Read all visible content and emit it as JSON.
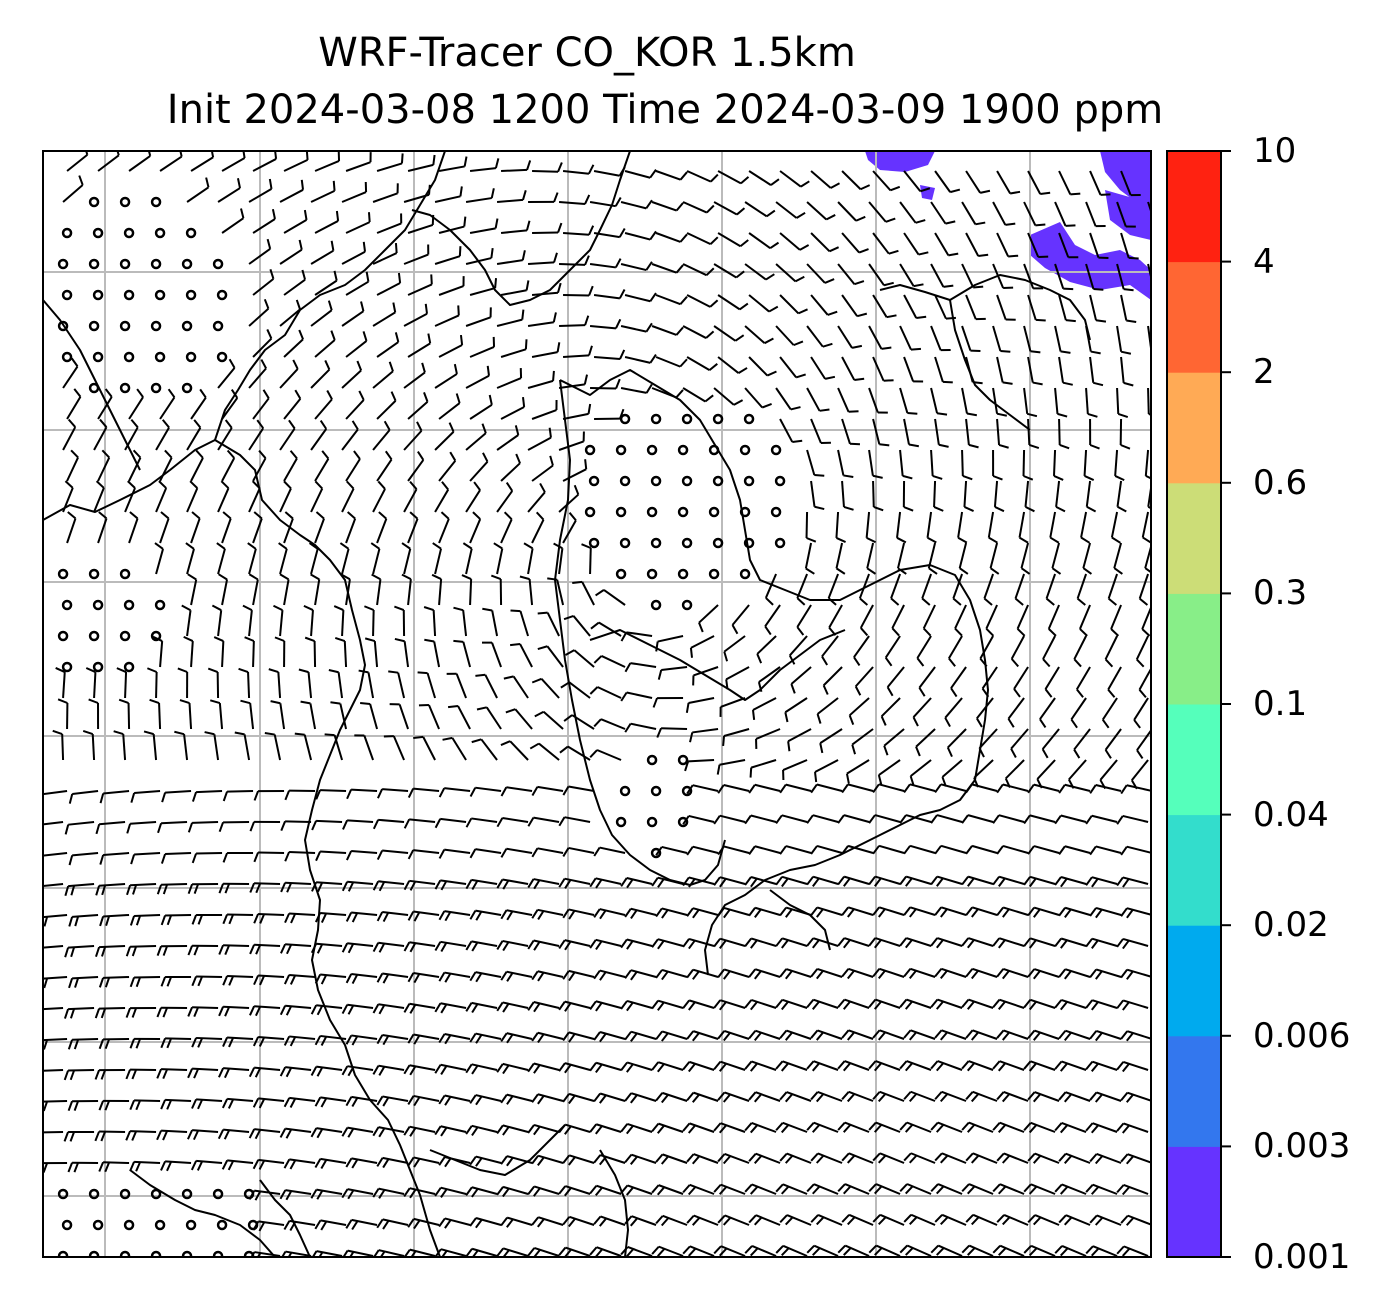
{
  "title": {
    "line1": "WRF-Tracer CO_KOR 1.5km",
    "line2": "Init 2024-03-08 1200 Time 2024-03-09 1900 ppm"
  },
  "colorbar": {
    "levels": [
      "0.001",
      "0.003",
      "0.006",
      "0.02",
      "0.04",
      "0.1",
      "0.3",
      "0.6",
      "2",
      "4",
      "10"
    ],
    "colors": [
      "#6633ff",
      "#3377ee",
      "#00aaee",
      "#33ddcc",
      "#55ffbb",
      "#88ee88",
      "#ccdd77",
      "#ffaa55",
      "#ff6633",
      "#ff2211"
    ]
  },
  "map": {
    "variable": "CO tracer concentration with wind barbs",
    "gridlines": true,
    "tracer_patches_color": "#6633ff"
  }
}
